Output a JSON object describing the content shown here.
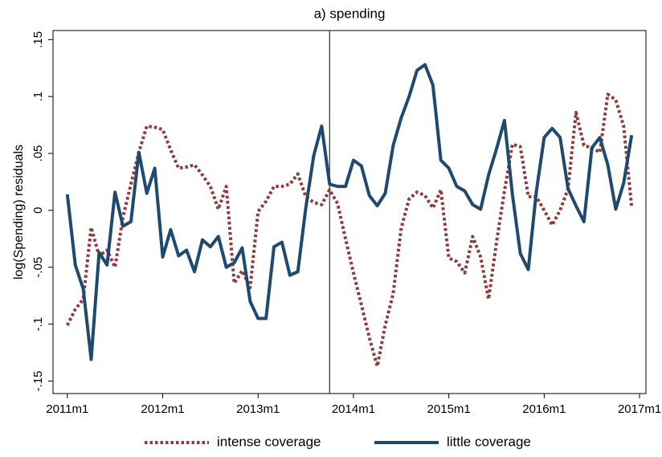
{
  "chart_data": {
    "type": "line",
    "title": "a) spending",
    "ylabel": "log(Spending) residuals",
    "x": [
      612,
      613,
      614,
      615,
      616,
      617,
      618,
      619,
      620,
      621,
      622,
      623,
      624,
      625,
      626,
      627,
      628,
      629,
      630,
      631,
      632,
      633,
      634,
      635,
      636,
      637,
      638,
      639,
      640,
      641,
      642,
      643,
      644,
      645,
      646,
      647,
      648,
      649,
      650,
      651,
      652,
      653,
      654,
      655,
      656,
      657,
      658,
      659,
      660,
      661,
      662,
      663,
      664,
      665,
      666,
      667,
      668,
      669,
      670,
      671,
      672,
      673,
      674,
      675,
      676,
      677,
      678,
      679,
      680,
      681,
      682,
      683
    ],
    "series": [
      {
        "name": "intense coverage",
        "color": "#913c3c",
        "style": "dotted",
        "values": [
          -0.101,
          -0.087,
          -0.078,
          -0.015,
          -0.04,
          -0.035,
          -0.05,
          -0.006,
          0.023,
          0.051,
          0.074,
          0.073,
          0.071,
          0.053,
          0.037,
          0.038,
          0.04,
          0.031,
          0.021,
          0.001,
          0.021,
          -0.064,
          -0.053,
          -0.068,
          -0.001,
          0.008,
          0.021,
          0.021,
          0.023,
          0.032,
          0.012,
          0.007,
          0.005,
          0.018,
          0.006,
          -0.025,
          -0.055,
          -0.083,
          -0.112,
          -0.137,
          -0.101,
          -0.073,
          -0.016,
          0.01,
          0.016,
          0.013,
          0.002,
          0.018,
          -0.042,
          -0.045,
          -0.055,
          -0.023,
          -0.041,
          -0.078,
          -0.028,
          0.017,
          0.058,
          0.056,
          0.012,
          0.012,
          0,
          -0.013,
          0,
          0.019,
          0.086,
          0.057,
          0.055,
          0.051,
          0.102,
          0.097,
          0.074,
          0.003
        ]
      },
      {
        "name": "little coverage",
        "color": "#1f4a70",
        "style": "solid",
        "values": [
          0.014,
          -0.048,
          -0.069,
          -0.131,
          -0.037,
          -0.048,
          0.016,
          -0.014,
          -0.01,
          0.051,
          0.015,
          0.037,
          -0.041,
          -0.017,
          -0.04,
          -0.035,
          -0.054,
          -0.026,
          -0.032,
          -0.023,
          -0.05,
          -0.046,
          -0.033,
          -0.08,
          -0.095,
          -0.095,
          -0.032,
          -0.028,
          -0.057,
          -0.054,
          0.002,
          0.048,
          0.074,
          0.023,
          0.021,
          0.021,
          0.044,
          0.039,
          0.013,
          0.004,
          0.015,
          0.057,
          0.081,
          0.1,
          0.123,
          0.128,
          0.11,
          0.044,
          0.037,
          0.021,
          0.017,
          0.005,
          0.001,
          0.031,
          0.054,
          0.079,
          0.014,
          -0.038,
          -0.052,
          0.016,
          0.064,
          0.072,
          0.064,
          0.019,
          0.004,
          -0.01,
          0.055,
          0.064,
          0.04,
          0.001,
          0.024,
          0.066
        ]
      }
    ],
    "xlim": [
      610.2,
      684.8
    ],
    "xticks": [
      {
        "value": 612,
        "label": "2011m1"
      },
      {
        "value": 624,
        "label": "2012m1"
      },
      {
        "value": 636,
        "label": "2013m1"
      },
      {
        "value": 648,
        "label": "2014m1"
      },
      {
        "value": 660,
        "label": "2015m1"
      },
      {
        "value": 672,
        "label": "2016m1"
      },
      {
        "value": 684,
        "label": "2017m1"
      }
    ],
    "ylim": [
      -0.161,
      0.158
    ],
    "yticks": [
      {
        "value": -0.15,
        "label": "-.15"
      },
      {
        "value": -0.1,
        "label": "-.1"
      },
      {
        "value": -0.05,
        "label": "-.05"
      },
      0,
      {
        "value": 0.05,
        "label": ".05"
      },
      {
        "value": 0.1,
        "label": ".1"
      },
      {
        "value": 0.15,
        "label": ".15"
      }
    ],
    "xline": 645,
    "legend": "bottom"
  }
}
